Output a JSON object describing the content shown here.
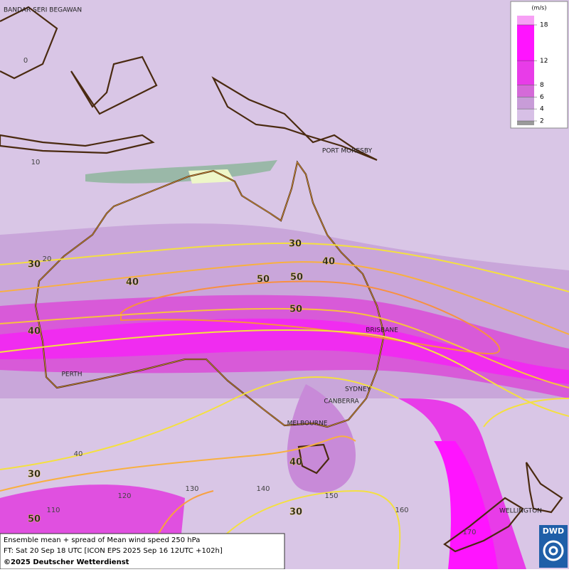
{
  "cities": [
    "BANDAR SERI BEGAWAN",
    "PORT MORESBY",
    "BRISBANE",
    "PERTH",
    "SYDNEY",
    "CANBERRA",
    "MELBOURNE",
    "WELLINGTON"
  ],
  "grid_labels": [
    "0",
    "10",
    "20",
    "40",
    "110",
    "120",
    "130",
    "140",
    "150",
    "160",
    "170"
  ],
  "contour_labels": [
    30,
    40,
    30,
    40,
    50,
    50,
    50,
    40,
    30,
    40,
    30,
    50
  ],
  "legend": {
    "unit": "(m/s)",
    "ticks": [
      2,
      4,
      6,
      8,
      12,
      18
    ],
    "colors": [
      "#9a9a9a",
      "#d7c0e6",
      "#c89cd8",
      "#d46ad8",
      "#e83ce8",
      "#ff14ff",
      "#f7a0f5"
    ]
  },
  "footer": {
    "line1": "Ensemble mean + spread of Mean wind speed 250 hPa",
    "line2": "FT: Sat 20 Sep 18 UTC [ICON EPS 2025 Sep 16 12UTC +102h]",
    "line3": "©2025 Deutscher Wetterdienst"
  },
  "logo": "DWD"
}
